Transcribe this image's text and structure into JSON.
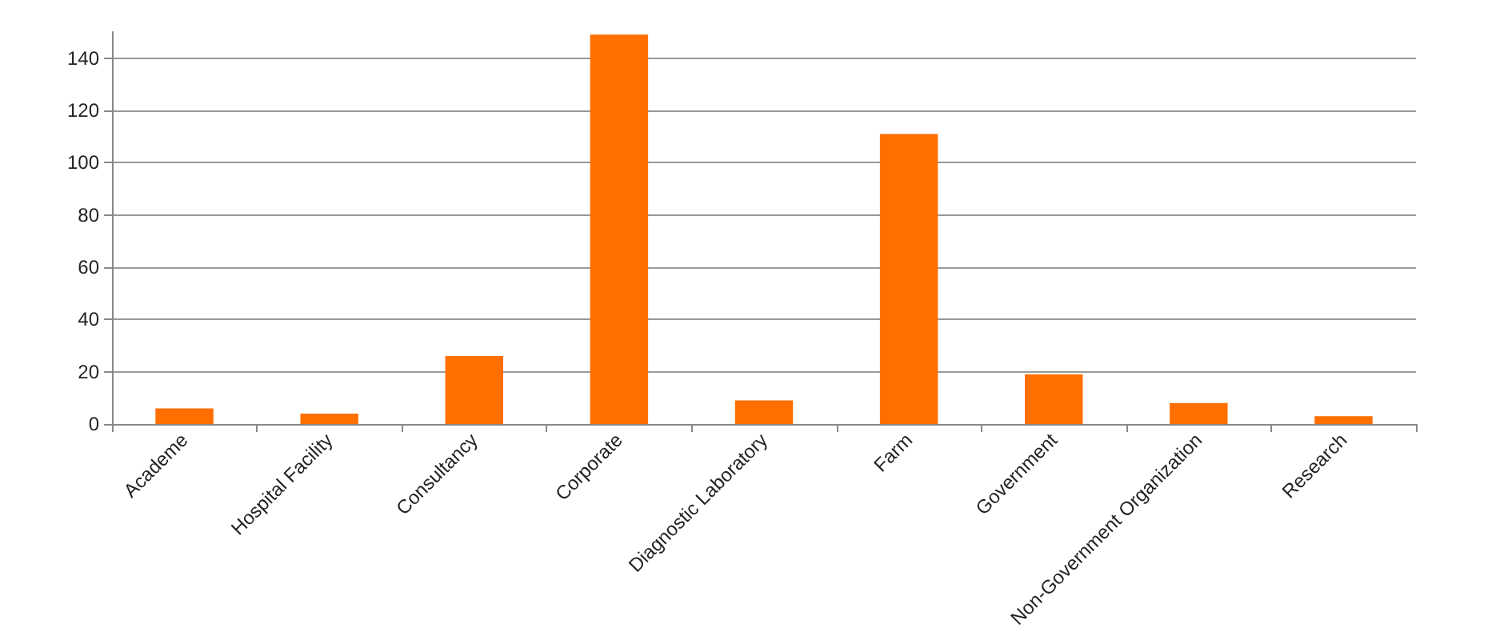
{
  "chart_data": {
    "type": "bar",
    "categories": [
      "Academe",
      "Hospital Facility",
      "Consultancy",
      "Corporate",
      "Diagnostic Laboratory",
      "Farm",
      "Government",
      "Non-Government Organization",
      "Research"
    ],
    "values": [
      6,
      4,
      26,
      149,
      9,
      111,
      19,
      8,
      3
    ],
    "color": "#ff6f00",
    "ylim": [
      0,
      150
    ],
    "yticks": [
      0,
      20,
      40,
      60,
      80,
      100,
      120,
      140
    ],
    "grid": "y"
  }
}
